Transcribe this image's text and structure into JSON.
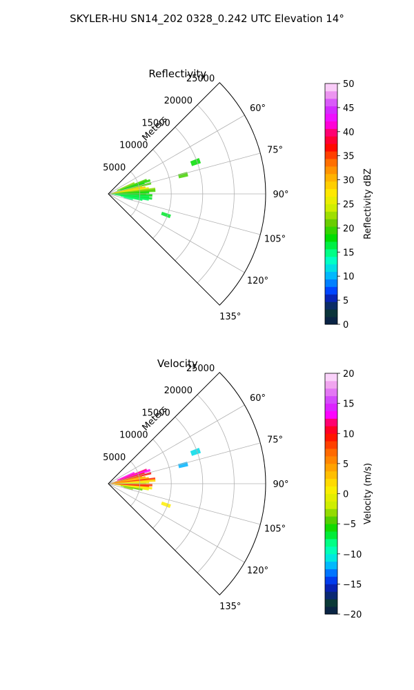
{
  "title": "SKYLER-HU  SN14_202  0328_0.242 UTC Elevation 14°",
  "colors": {
    "background": "#ffffff",
    "grid": "#b0b0b0",
    "axis": "#000000"
  },
  "chart_data": [
    {
      "type": "polar-sector",
      "title": "Reflectivity",
      "radial_label": "Meters",
      "radial_ticks": [
        5000,
        10000,
        15000,
        20000,
        25000
      ],
      "rmax": 25000,
      "theta_ticks": [
        "60°",
        "75°",
        "90°",
        "105°",
        "120°",
        "135°"
      ],
      "theta_tick_values": [
        60,
        75,
        90,
        105,
        120,
        135
      ],
      "theta_range": [
        45,
        135
      ],
      "field": "reflectivity",
      "colorbar": {
        "label": "Reflectivity dBZ",
        "min": 0,
        "max": 50,
        "ticks": [
          "0",
          "5",
          "10",
          "15",
          "20",
          "25",
          "30",
          "35",
          "40",
          "45",
          "50"
        ],
        "tick_values": [
          0,
          5,
          10,
          15,
          20,
          25,
          30,
          35,
          40,
          45,
          50
        ],
        "levels": 32,
        "stops": [
          {
            "v": 0,
            "c": "#0a1a4a"
          },
          {
            "v": 3,
            "c": "#0b3b36"
          },
          {
            "v": 5,
            "c": "#0a1aa0"
          },
          {
            "v": 7,
            "c": "#0044ff"
          },
          {
            "v": 10,
            "c": "#00b4ff"
          },
          {
            "v": 13,
            "c": "#00ffd0"
          },
          {
            "v": 15,
            "c": "#00ff80"
          },
          {
            "v": 18,
            "c": "#00dd00"
          },
          {
            "v": 21,
            "c": "#66cc00"
          },
          {
            "v": 24,
            "c": "#ccee00"
          },
          {
            "v": 27,
            "c": "#ffee00"
          },
          {
            "v": 31,
            "c": "#ffaa00"
          },
          {
            "v": 34,
            "c": "#ff6600"
          },
          {
            "v": 37,
            "c": "#ff0000"
          },
          {
            "v": 40,
            "c": "#ff0077"
          },
          {
            "v": 42,
            "c": "#ff00ff"
          },
          {
            "v": 45,
            "c": "#cc33ff"
          },
          {
            "v": 48,
            "c": "#f0a0ee"
          },
          {
            "v": 50,
            "c": "#ffe8ff"
          }
        ]
      },
      "echoes": [
        {
          "theta": 67,
          "r": [
            1500,
            4500
          ],
          "value": 22
        },
        {
          "theta": 70,
          "r": [
            1500,
            6500
          ],
          "value": 20
        },
        {
          "theta": 72,
          "r": [
            2000,
            7000
          ],
          "value": 19
        },
        {
          "theta": 74,
          "r": [
            1000,
            6000
          ],
          "value": 18
        },
        {
          "theta": 76,
          "r": [
            500,
            7000
          ],
          "value": 20
        },
        {
          "theta": 78,
          "r": [
            500,
            5500
          ],
          "value": 24
        },
        {
          "theta": 80,
          "r": [
            300,
            6000
          ],
          "value": 30
        },
        {
          "theta": 82,
          "r": [
            300,
            6500
          ],
          "value": 26
        },
        {
          "theta": 84,
          "r": [
            300,
            7500
          ],
          "value": 22
        },
        {
          "theta": 86,
          "r": [
            300,
            7500
          ],
          "value": 20
        },
        {
          "theta": 88,
          "r": [
            300,
            6500
          ],
          "value": 18
        },
        {
          "theta": 90,
          "r": [
            300,
            6000
          ],
          "value": 19
        },
        {
          "theta": 92,
          "r": [
            300,
            7000
          ],
          "value": 18
        },
        {
          "theta": 94,
          "r": [
            300,
            6500
          ],
          "value": 16
        },
        {
          "theta": 96,
          "r": [
            500,
            7000
          ],
          "value": 17
        },
        {
          "theta": 98,
          "r": [
            1000,
            6500
          ],
          "value": 16
        },
        {
          "theta": 100,
          "r": [
            2000,
            5500
          ],
          "value": 16
        },
        {
          "theta": 103,
          "r": [
            2500,
            4000
          ],
          "value": 15
        },
        {
          "theta": 70,
          "r": [
            14000,
            15500
          ],
          "value": 18
        },
        {
          "theta": 76,
          "r": [
            11500,
            13000
          ],
          "value": 20
        },
        {
          "theta": 110,
          "r": [
            9000,
            10500
          ],
          "value": 17
        }
      ]
    },
    {
      "type": "polar-sector",
      "title": "Velocity",
      "radial_label": "Meters",
      "radial_ticks": [
        5000,
        10000,
        15000,
        20000,
        25000
      ],
      "rmax": 25000,
      "theta_ticks": [
        "60°",
        "75°",
        "90°",
        "105°",
        "120°",
        "135°"
      ],
      "theta_tick_values": [
        60,
        75,
        90,
        105,
        120,
        135
      ],
      "theta_range": [
        45,
        135
      ],
      "field": "velocity",
      "colorbar": {
        "label": "Velocity (m/s)",
        "min": -20,
        "max": 20,
        "ticks": [
          "−20",
          "−15",
          "−10",
          "−5",
          "0",
          "5",
          "10",
          "15",
          "20"
        ],
        "tick_values": [
          -20,
          -15,
          -10,
          -5,
          0,
          5,
          10,
          15,
          20
        ],
        "levels": 32,
        "stops": [
          {
            "v": -20,
            "c": "#0a1a4a"
          },
          {
            "v": -18,
            "c": "#0b3b36"
          },
          {
            "v": -16,
            "c": "#0a1aa0"
          },
          {
            "v": -14,
            "c": "#0044ff"
          },
          {
            "v": -12,
            "c": "#00b4ff"
          },
          {
            "v": -10,
            "c": "#00ffd0"
          },
          {
            "v": -8,
            "c": "#00ff80"
          },
          {
            "v": -6,
            "c": "#00dd00"
          },
          {
            "v": -4,
            "c": "#66cc00"
          },
          {
            "v": -2,
            "c": "#ccee00"
          },
          {
            "v": 1,
            "c": "#ffee00"
          },
          {
            "v": 4,
            "c": "#ffaa00"
          },
          {
            "v": 7,
            "c": "#ff6600"
          },
          {
            "v": 10,
            "c": "#ff0000"
          },
          {
            "v": 12,
            "c": "#ff0077"
          },
          {
            "v": 13,
            "c": "#ff00ff"
          },
          {
            "v": 15,
            "c": "#cc33ff"
          },
          {
            "v": 18,
            "c": "#f0a0ee"
          },
          {
            "v": 20,
            "c": "#ffe8ff"
          }
        ]
      },
      "echoes": [
        {
          "theta": 67,
          "r": [
            1500,
            4500
          ],
          "value": 13
        },
        {
          "theta": 70,
          "r": [
            1500,
            6500
          ],
          "value": 12
        },
        {
          "theta": 72,
          "r": [
            2000,
            7000
          ],
          "value": 13
        },
        {
          "theta": 74,
          "r": [
            1000,
            6000
          ],
          "value": 9
        },
        {
          "theta": 76,
          "r": [
            500,
            7000
          ],
          "value": 10
        },
        {
          "theta": 78,
          "r": [
            500,
            5500
          ],
          "value": 6
        },
        {
          "theta": 80,
          "r": [
            300,
            6000
          ],
          "value": 4
        },
        {
          "theta": 82,
          "r": [
            300,
            6500
          ],
          "value": 3
        },
        {
          "theta": 84,
          "r": [
            300,
            7500
          ],
          "value": 9
        },
        {
          "theta": 86,
          "r": [
            300,
            7500
          ],
          "value": 2
        },
        {
          "theta": 88,
          "r": [
            300,
            6500
          ],
          "value": 0
        },
        {
          "theta": 90,
          "r": [
            300,
            6000
          ],
          "value": -2
        },
        {
          "theta": 92,
          "r": [
            300,
            7000
          ],
          "value": 8
        },
        {
          "theta": 94,
          "r": [
            300,
            6500
          ],
          "value": 9
        },
        {
          "theta": 96,
          "r": [
            500,
            7000
          ],
          "value": 1
        },
        {
          "theta": 98,
          "r": [
            1000,
            6500
          ],
          "value": 0
        },
        {
          "theta": 100,
          "r": [
            2000,
            5500
          ],
          "value": -4
        },
        {
          "theta": 103,
          "r": [
            2500,
            4000
          ],
          "value": -3
        },
        {
          "theta": 70,
          "r": [
            14000,
            15500
          ],
          "value": -11
        },
        {
          "theta": 76,
          "r": [
            11500,
            13000
          ],
          "value": -12
        },
        {
          "theta": 110,
          "r": [
            9000,
            10500
          ],
          "value": 1
        }
      ]
    }
  ]
}
